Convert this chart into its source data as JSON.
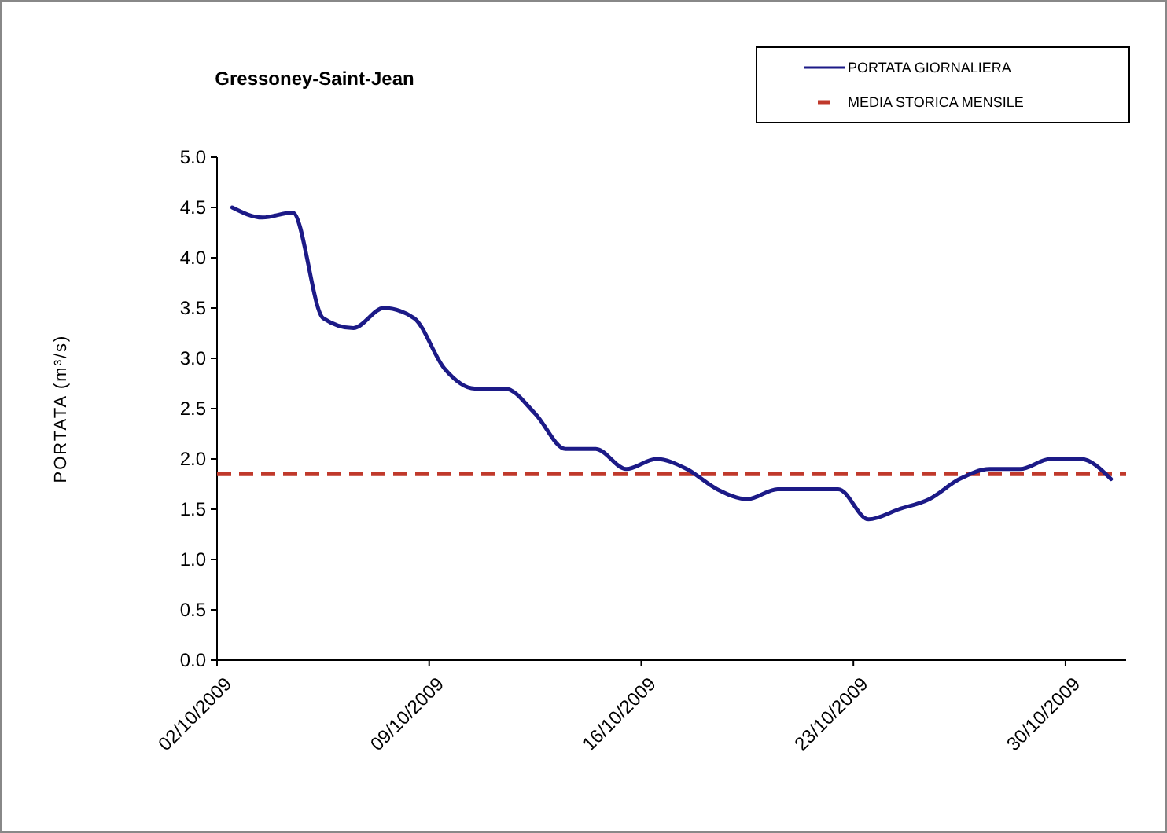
{
  "chart_data": {
    "type": "line",
    "title": "Gressoney-Saint-Jean",
    "ylabel": "PORTATA (m³/s)",
    "x": [
      "2009-10-02T12:00",
      "2009-10-03T12:00",
      "2009-10-04T12:00",
      "2009-10-05T12:00",
      "2009-10-06T12:00",
      "2009-10-07T12:00",
      "2009-10-08T12:00",
      "2009-10-09T12:00",
      "2009-10-10T12:00",
      "2009-10-11T12:00",
      "2009-10-12T12:00",
      "2009-10-13T12:00",
      "2009-10-14T12:00",
      "2009-10-15T12:00",
      "2009-10-16T12:00",
      "2009-10-17T12:00",
      "2009-10-18T12:00",
      "2009-10-19T12:00",
      "2009-10-20T12:00",
      "2009-10-21T12:00",
      "2009-10-22T12:00",
      "2009-10-23T12:00",
      "2009-10-24T12:00",
      "2009-10-25T12:00",
      "2009-10-26T12:00",
      "2009-10-27T12:00",
      "2009-10-28T12:00",
      "2009-10-29T12:00",
      "2009-10-30T12:00",
      "2009-10-31T12:00"
    ],
    "series": [
      {
        "name": "PORTATA GIORNALIERA",
        "color": "#1c1a87",
        "values": [
          4.5,
          4.4,
          4.45,
          3.4,
          3.3,
          3.5,
          3.4,
          2.9,
          2.7,
          2.7,
          2.45,
          2.1,
          2.1,
          1.9,
          2.0,
          1.9,
          1.7,
          1.6,
          1.7,
          1.7,
          1.7,
          1.4,
          1.5,
          1.6,
          1.8,
          1.9,
          1.9,
          2.0,
          2.0,
          1.8
        ]
      }
    ],
    "ref_lines": [
      {
        "axis": "y",
        "value": 1.85,
        "label": "MEDIA STORICA MENSILE",
        "color": "#c0392b",
        "line_style": "dashed"
      }
    ],
    "xlim": [
      "2009-10-02",
      "2009-11-01"
    ],
    "xticks": [
      {
        "value": "2009-10-02",
        "label": "02/10/2009"
      },
      {
        "value": "2009-10-09",
        "label": "09/10/2009"
      },
      {
        "value": "2009-10-16",
        "label": "16/10/2009"
      },
      {
        "value": "2009-10-23",
        "label": "23/10/2009"
      },
      {
        "value": "2009-10-30",
        "label": "30/10/2009"
      }
    ],
    "ylim": [
      0,
      5
    ],
    "yticks": [
      {
        "value": 0,
        "label": "0.0"
      },
      {
        "value": 0.5,
        "label": "0.5"
      },
      {
        "value": 1,
        "label": "1.0"
      },
      {
        "value": 1.5,
        "label": "1.5"
      },
      {
        "value": 2,
        "label": "2.0"
      },
      {
        "value": 2.5,
        "label": "2.5"
      },
      {
        "value": 3,
        "label": "3.0"
      },
      {
        "value": 3.5,
        "label": "3.5"
      },
      {
        "value": 4,
        "label": "4.0"
      },
      {
        "value": 4.5,
        "label": "4.5"
      },
      {
        "value": 5,
        "label": "5.0"
      }
    ],
    "grid": false,
    "legend": "top right",
    "marker": "none",
    "line_style": "solid"
  }
}
